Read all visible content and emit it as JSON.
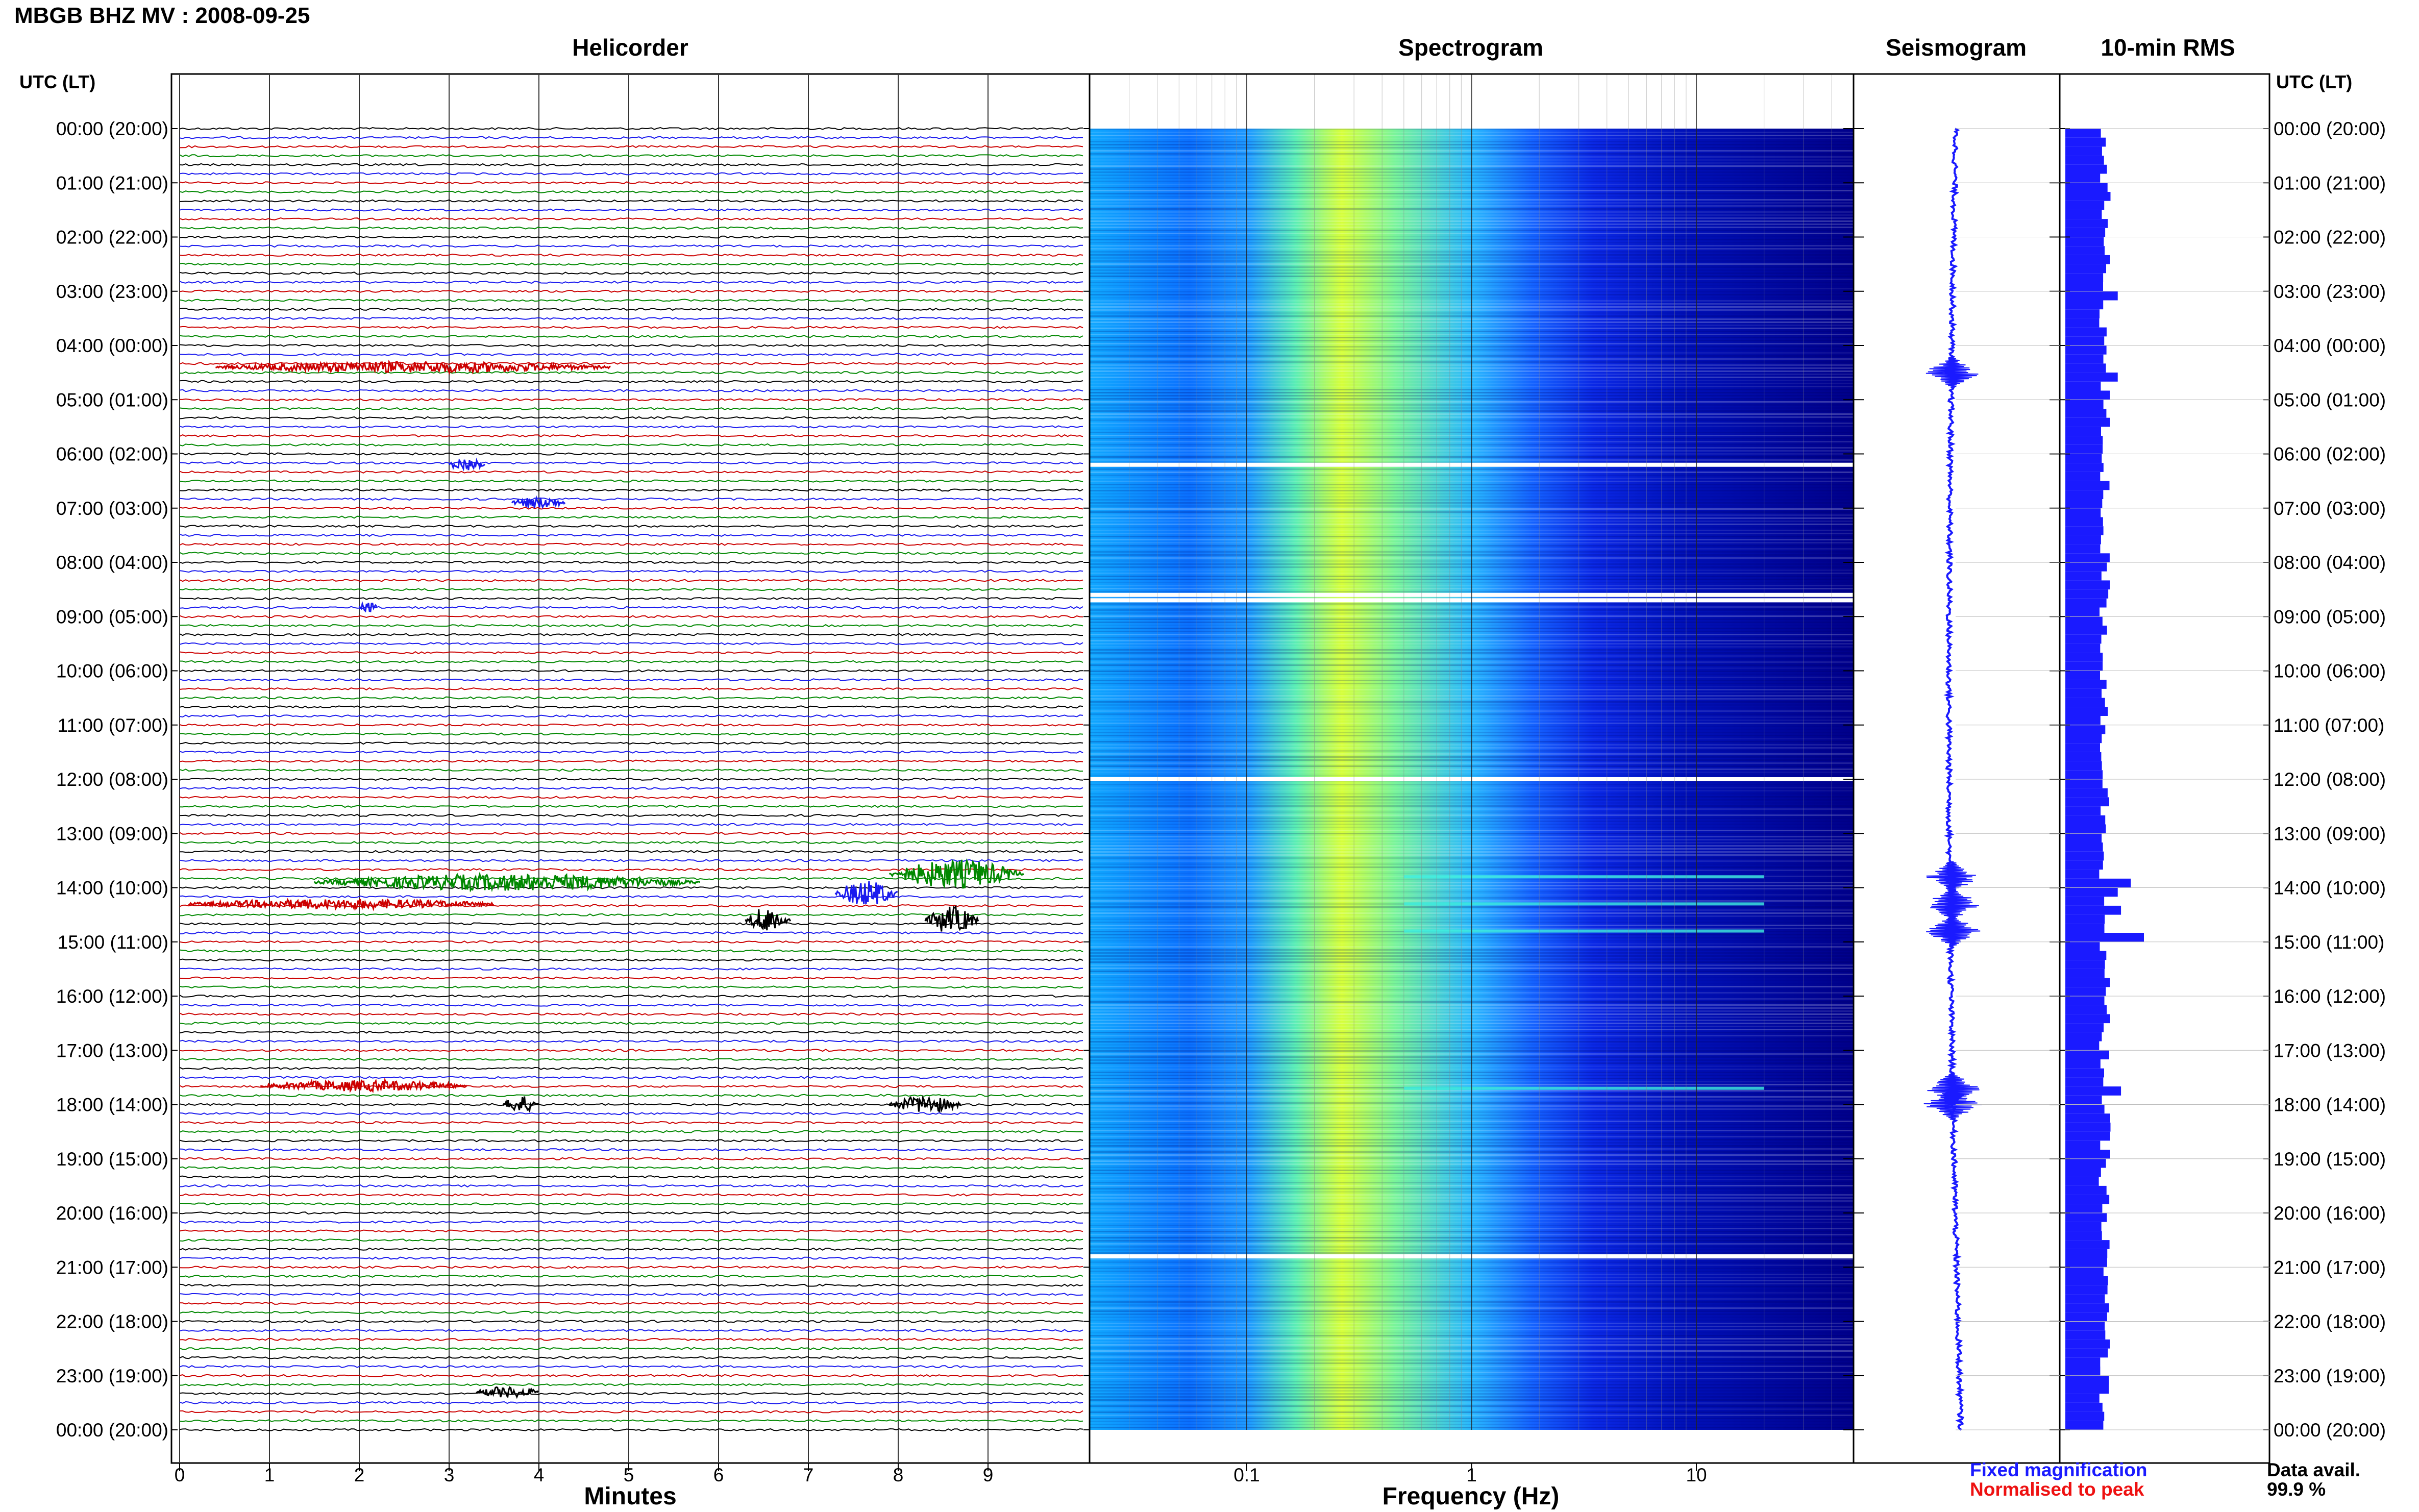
{
  "header": {
    "title": "MBGB BHZ MV : 2008-09-25",
    "utc_label_left": "UTC (LT)",
    "utc_label_right": "UTC (LT)"
  },
  "panels": {
    "helicorder": "Helicorder",
    "spectrogram": "Spectrogram",
    "seismogram": "Seismogram",
    "rms": "10-min RMS"
  },
  "legend": {
    "fixed": "Fixed magnification",
    "fixed_color": "#1a1aff",
    "normalised": "Normalised to peak",
    "normalised_color": "#ee1111"
  },
  "data_availability": {
    "label": "Data avail.",
    "value": "99.9 %"
  },
  "chart_data": [
    {
      "type": "line",
      "title": "Helicorder",
      "xlabel": "Minutes",
      "x_ticks": [
        "0",
        "1",
        "2",
        "3",
        "4",
        "5",
        "6",
        "7",
        "8",
        "9"
      ],
      "xlim": [
        0,
        10
      ],
      "traces_per_hour": 6,
      "trace_colors": [
        "#000000",
        "#1a1aee",
        "#cc0000",
        "#008800"
      ],
      "hour_labels": [
        "00:00 (20:00)",
        "01:00 (21:00)",
        "02:00 (22:00)",
        "03:00 (23:00)",
        "04:00 (00:00)",
        "05:00 (01:00)",
        "06:00 (02:00)",
        "07:00 (03:00)",
        "08:00 (04:00)",
        "09:00 (05:00)",
        "10:00 (06:00)",
        "11:00 (07:00)",
        "12:00 (08:00)",
        "13:00 (09:00)",
        "14:00 (10:00)",
        "15:00 (11:00)",
        "16:00 (12:00)",
        "17:00 (13:00)",
        "18:00 (14:00)",
        "19:00 (15:00)",
        "20:00 (16:00)",
        "21:00 (17:00)",
        "22:00 (18:00)",
        "23:00 (19:00)",
        "00:00 (20:00)"
      ],
      "events": [
        {
          "hour": 4.4,
          "start_min": 0.4,
          "end_min": 4.8,
          "amp": 1.5
        },
        {
          "hour": 6.2,
          "start_min": 3.0,
          "end_min": 3.4,
          "amp": 2.0
        },
        {
          "hour": 6.9,
          "start_min": 3.7,
          "end_min": 4.3,
          "amp": 1.6
        },
        {
          "hour": 8.8,
          "start_min": 2.0,
          "end_min": 2.2,
          "amp": 2.0
        },
        {
          "hour": 13.75,
          "start_min": 7.9,
          "end_min": 9.4,
          "amp": 4.5
        },
        {
          "hour": 13.9,
          "start_min": 1.5,
          "end_min": 5.8,
          "amp": 2.4
        },
        {
          "hour": 14.1,
          "start_min": 7.3,
          "end_min": 8.0,
          "amp": 4.0
        },
        {
          "hour": 14.3,
          "start_min": 0.1,
          "end_min": 3.5,
          "amp": 1.3
        },
        {
          "hour": 14.6,
          "start_min": 6.3,
          "end_min": 6.8,
          "amp": 4.0
        },
        {
          "hour": 14.6,
          "start_min": 8.3,
          "end_min": 8.9,
          "amp": 4.2
        },
        {
          "hour": 17.65,
          "start_min": 0.9,
          "end_min": 3.2,
          "amp": 1.5
        },
        {
          "hour": 18.0,
          "start_min": 3.6,
          "end_min": 4.0,
          "amp": 2.5
        },
        {
          "hour": 18.0,
          "start_min": 7.9,
          "end_min": 8.7,
          "amp": 2.5
        },
        {
          "hour": 23.3,
          "start_min": 3.3,
          "end_min": 4.0,
          "amp": 1.5
        }
      ]
    },
    {
      "type": "heatmap",
      "title": "Spectrogram",
      "xlabel": "Frequency (Hz)",
      "x_scale": "log",
      "xlim": [
        0.02,
        50
      ],
      "x_ticks": [
        "0.1",
        "1",
        "10"
      ],
      "colormap": [
        "#00007a",
        "#0000c8",
        "#0a40ff",
        "#1a8cff",
        "#20c8ff",
        "#40f0e0",
        "#a0ff60",
        "#f0ff20"
      ],
      "peak_frequency_hz": 0.3,
      "gaps_hours": [
        6.2,
        8.6,
        8.7,
        12.0,
        20.8
      ],
      "bright_hours": [
        13.8,
        14.3,
        14.8,
        17.7
      ]
    },
    {
      "type": "line",
      "title": "Seismogram",
      "color": "#1a1aff",
      "events_hours": [
        4.5,
        13.8,
        14.3,
        14.8,
        17.7,
        18.0
      ]
    },
    {
      "type": "bar",
      "title": "10-min RMS",
      "color": "#1a1aff",
      "bins_per_hour": 6,
      "baseline": 0.6,
      "spikes": [
        {
          "hour": 3.0,
          "value": 0.8
        },
        {
          "hour": 4.5,
          "value": 0.8
        },
        {
          "hour": 13.8,
          "value": 1.0
        },
        {
          "hour": 14.0,
          "value": 0.8
        },
        {
          "hour": 14.3,
          "value": 0.85
        },
        {
          "hour": 14.8,
          "value": 1.2
        },
        {
          "hour": 17.7,
          "value": 0.85
        }
      ]
    }
  ]
}
